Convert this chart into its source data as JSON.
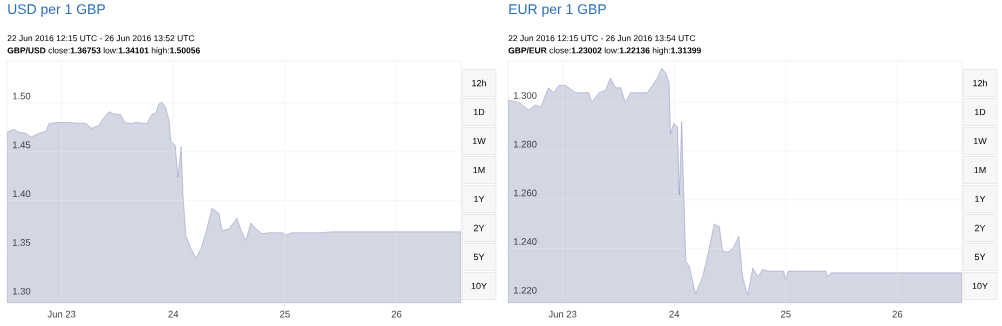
{
  "chart_data": [
    {
      "type": "area",
      "title": "USD per 1 GBP",
      "subtitle": "22 Jun 2016 12:15 UTC - 26 Jun 2016 13:52 UTC",
      "annotations": [
        "**GBP/USD** close:**1.36753** low:**1.34101** high:**1.50056**",
        "12h",
        "1D",
        "1W",
        "1M",
        "1Y",
        "2Y",
        "5Y",
        "10Y"
      ],
      "color": "#d3d7e4",
      "grid": true,
      "xlim": [
        "2016-06-22T12:15",
        "2016-06-26T13:52"
      ],
      "xticks": [
        {
          "value": "2016-06-23",
          "label": "Jun 23"
        },
        {
          "value": "2016-06-24",
          "label": "24"
        },
        {
          "value": "2016-06-25",
          "label": "25"
        },
        {
          "value": "2016-06-26",
          "label": "26"
        }
      ],
      "ylim": [
        1.295,
        1.543
      ],
      "yticks": [
        {
          "value": 1.3,
          "label": "1.30"
        },
        {
          "value": 1.35,
          "label": "1.35"
        },
        {
          "value": 1.4,
          "label": "1.40"
        },
        {
          "value": 1.45,
          "label": "1.45"
        },
        {
          "value": 1.5,
          "label": "1.50"
        }
      ],
      "x": [
        "2016-06-22T12:15",
        "2016-06-22T13:42",
        "2016-06-22T14:48",
        "2016-06-22T16:18",
        "2016-06-22T17:24",
        "2016-06-22T19:06",
        "2016-06-22T20:36",
        "2016-06-22T21:18",
        "2016-06-22T23:00",
        "2016-06-23T01:06",
        "2016-06-23T05:12",
        "2016-06-23T06:30",
        "2016-06-23T08:00",
        "2016-06-23T09:06",
        "2016-06-23T10:12",
        "2016-06-23T11:12",
        "2016-06-23T12:42",
        "2016-06-23T13:36",
        "2016-06-23T14:54",
        "2016-06-23T16:00",
        "2016-06-23T18:18",
        "2016-06-23T19:24",
        "2016-06-23T20:18",
        "2016-06-23T20:54",
        "2016-06-23T21:36",
        "2016-06-23T22:24",
        "2016-06-23T23:06",
        "2016-06-23T23:30",
        "2016-06-24T00:24",
        "2016-06-24T01:00",
        "2016-06-24T01:42",
        "2016-06-24T02:06",
        "2016-06-24T02:42",
        "2016-06-24T03:48",
        "2016-06-24T04:54",
        "2016-06-24T06:00",
        "2016-06-24T07:00",
        "2016-06-24T08:18",
        "2016-06-24T09:48",
        "2016-06-24T10:30",
        "2016-06-24T12:00",
        "2016-06-24T12:36",
        "2016-06-24T13:42",
        "2016-06-24T14:36",
        "2016-06-24T15:36",
        "2016-06-24T16:42",
        "2016-06-24T17:48",
        "2016-06-24T19:06",
        "2016-06-24T20:36",
        "2016-06-24T23:24",
        "2016-06-25T00:18",
        "2016-06-25T01:30",
        "2016-06-25T08:00",
        "2016-06-25T09:54",
        "2016-06-26T13:52"
      ],
      "values": [
        1.47,
        1.473,
        1.47,
        1.469,
        1.465,
        1.469,
        1.471,
        1.479,
        1.48,
        1.48,
        1.479,
        1.474,
        1.477,
        1.485,
        1.491,
        1.489,
        1.488,
        1.48,
        1.479,
        1.48,
        1.479,
        1.488,
        1.49,
        1.499,
        1.501,
        1.495,
        1.482,
        1.46,
        1.457,
        1.424,
        1.455,
        1.405,
        1.364,
        1.351,
        1.341,
        1.351,
        1.367,
        1.392,
        1.387,
        1.369,
        1.371,
        1.375,
        1.382,
        1.369,
        1.359,
        1.377,
        1.371,
        1.366,
        1.367,
        1.367,
        1.365,
        1.367,
        1.367,
        1.368,
        1.368
      ]
    },
    {
      "type": "area",
      "title": "EUR per 1 GBP",
      "subtitle": "22 Jun 2016 12:15 UTC - 26 Jun 2016 13:54 UTC",
      "annotations": [
        "**GBP/EUR** close:**1.23002** low:**1.22136** high:**1.31399**",
        "12h",
        "1D",
        "1W",
        "1M",
        "1Y",
        "2Y",
        "5Y",
        "10Y"
      ],
      "color": "#d3d7e4",
      "grid": true,
      "xlim": [
        "2016-06-22T12:15",
        "2016-06-26T13:54"
      ],
      "xticks": [
        {
          "value": "2016-06-23",
          "label": "Jun 23"
        },
        {
          "value": "2016-06-24",
          "label": "24"
        },
        {
          "value": "2016-06-25",
          "label": "25"
        },
        {
          "value": "2016-06-26",
          "label": "26"
        }
      ],
      "ylim": [
        1.2176,
        1.317
      ],
      "yticks": [
        {
          "value": 1.22,
          "label": "1.220"
        },
        {
          "value": 1.24,
          "label": "1.240"
        },
        {
          "value": 1.26,
          "label": "1.260"
        },
        {
          "value": 1.28,
          "label": "1.280"
        },
        {
          "value": 1.3,
          "label": "1.300"
        }
      ],
      "x": [
        "2016-06-22T12:15",
        "2016-06-22T14:36",
        "2016-06-22T16:42",
        "2016-06-22T18:12",
        "2016-06-22T19:18",
        "2016-06-22T20:18",
        "2016-06-22T21:00",
        "2016-06-22T22:06",
        "2016-06-22T23:12",
        "2016-06-23T00:36",
        "2016-06-23T02:48",
        "2016-06-23T04:54",
        "2016-06-23T05:36",
        "2016-06-23T06:18",
        "2016-06-23T07:48",
        "2016-06-23T09:12",
        "2016-06-23T10:18",
        "2016-06-23T11:24",
        "2016-06-23T12:30",
        "2016-06-23T13:30",
        "2016-06-23T14:36",
        "2016-06-23T16:24",
        "2016-06-23T18:12",
        "2016-06-23T19:18",
        "2016-06-23T20:24",
        "2016-06-23T21:18",
        "2016-06-23T22:12",
        "2016-06-23T22:54",
        "2016-06-23T23:12",
        "2016-06-23T23:54",
        "2016-06-24T00:42",
        "2016-06-24T01:06",
        "2016-06-24T01:36",
        "2016-06-24T02:30",
        "2016-06-24T03:12",
        "2016-06-24T04:36",
        "2016-06-24T06:06",
        "2016-06-24T07:06",
        "2016-06-24T08:36",
        "2016-06-24T09:42",
        "2016-06-24T10:24",
        "2016-06-24T11:30",
        "2016-06-24T12:36",
        "2016-06-24T13:54",
        "2016-06-24T14:42",
        "2016-06-24T15:48",
        "2016-06-24T16:54",
        "2016-06-24T18:00",
        "2016-06-24T19:00",
        "2016-06-24T20:06",
        "2016-06-24T23:30",
        "2016-06-25T00:00",
        "2016-06-25T00:30",
        "2016-06-25T08:36",
        "2016-06-25T09:00",
        "2016-06-25T09:42",
        "2016-06-25T10:24",
        "2016-06-26T13:54"
      ],
      "values": [
        1.3009,
        1.3,
        1.297,
        1.299,
        1.298,
        1.303,
        1.306,
        1.304,
        1.307,
        1.307,
        1.304,
        1.304,
        1.304,
        1.3,
        1.304,
        1.305,
        1.31,
        1.306,
        1.306,
        1.3,
        1.304,
        1.304,
        1.304,
        1.307,
        1.31,
        1.314,
        1.312,
        1.308,
        1.287,
        1.2915,
        1.29,
        1.262,
        1.292,
        1.2348,
        1.2328,
        1.2214,
        1.2283,
        1.2364,
        1.2499,
        1.249,
        1.239,
        1.2385,
        1.24,
        1.245,
        1.2283,
        1.221,
        1.232,
        1.2283,
        1.2315,
        1.2307,
        1.2307,
        1.227,
        1.2307,
        1.2307,
        1.2283,
        1.23,
        1.23,
        1.23
      ]
    }
  ]
}
